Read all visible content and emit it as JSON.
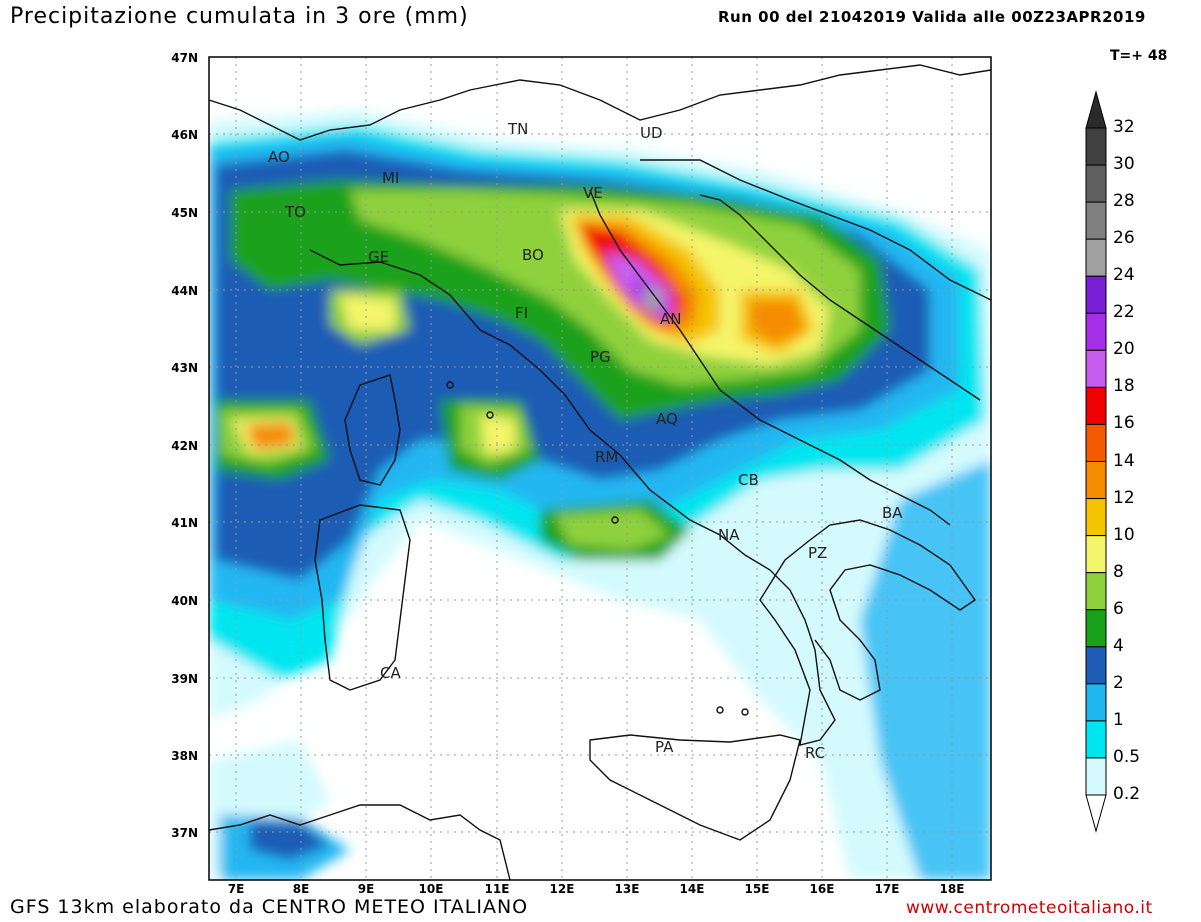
{
  "title": "Precipitazione cumulata in 3 ore (mm)",
  "run_info": "Run 00 del 21042019 Valida alle 00Z23APR2019",
  "timestep": "T=+ 48",
  "footer_left": "GFS 13km elaborato da CENTRO METEO ITALIANO",
  "footer_right": "www.centrometeoitaliano.it",
  "latitudes": [
    "47N",
    "46N",
    "45N",
    "44N",
    "43N",
    "42N",
    "41N",
    "40N",
    "39N",
    "38N",
    "37N"
  ],
  "longitudes": [
    "7E",
    "8E",
    "9E",
    "10E",
    "11E",
    "12E",
    "13E",
    "14E",
    "15E",
    "16E",
    "17E",
    "18E"
  ],
  "legend": {
    "levels": [
      "0.2",
      "0.5",
      "1",
      "2",
      "4",
      "6",
      "8",
      "10",
      "12",
      "14",
      "16",
      "18",
      "20",
      "22",
      "24",
      "26",
      "28",
      "30",
      "32"
    ],
    "colors": [
      "#d4fafd",
      "#00e6f0",
      "#23b7f2",
      "#1f5cb5",
      "#1aa11a",
      "#8fd13c",
      "#f5f56b",
      "#f5c400",
      "#f58c00",
      "#f55a00",
      "#f00000",
      "#c75df0",
      "#a52ee8",
      "#7a1fd8",
      "#a0a0a0",
      "#808080",
      "#606060",
      "#404040",
      "#2a2a2a"
    ]
  },
  "cities": [
    "TN",
    "UD",
    "MI",
    "VE",
    "TO",
    "BO",
    "GE",
    "FI",
    "AN",
    "PG",
    "AQ",
    "RM",
    "CB",
    "NA",
    "PZ",
    "BA",
    "CA",
    "PA",
    "RC",
    "AO"
  ]
}
